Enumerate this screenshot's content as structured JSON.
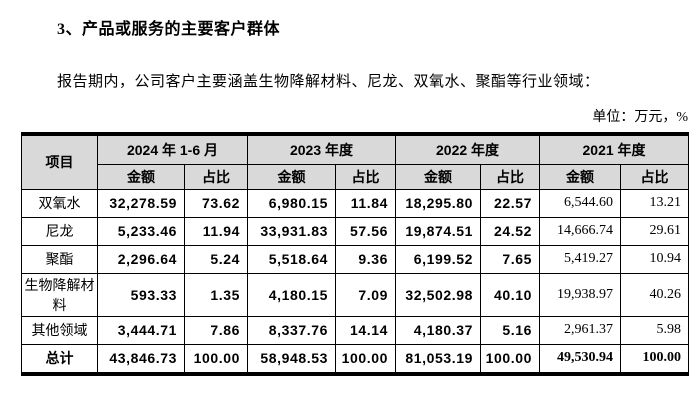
{
  "page": {
    "heading": "3、产品或服务的主要客户群体",
    "paragraph": "报告期内，公司客户主要涵盖生物降解材料、尼龙、双氧水、聚酯等行业领域：",
    "unit_note": "单位：万元，%"
  },
  "table": {
    "item_header": "项目",
    "period_headers": [
      "2024 年 1-6 月",
      "2023 年度",
      "2022 年度",
      "2021 年度"
    ],
    "sub_headers": [
      "金额",
      "占比"
    ],
    "rows": [
      {
        "label": "双氧水",
        "values": [
          "32,278.59",
          "73.62",
          "6,980.15",
          "11.84",
          "18,295.80",
          "22.57",
          "6,544.60",
          "13.21"
        ]
      },
      {
        "label": "尼龙",
        "values": [
          "5,233.46",
          "11.94",
          "33,931.83",
          "57.56",
          "19,874.51",
          "24.52",
          "14,666.74",
          "29.61"
        ]
      },
      {
        "label": "聚酯",
        "values": [
          "2,296.64",
          "5.24",
          "5,518.64",
          "9.36",
          "6,199.52",
          "7.65",
          "5,419.27",
          "10.94"
        ]
      },
      {
        "label": "生物降解材料",
        "values": [
          "593.33",
          "1.35",
          "4,180.15",
          "7.09",
          "32,502.98",
          "40.10",
          "19,938.97",
          "40.26"
        ]
      },
      {
        "label": "其他领域",
        "values": [
          "3,444.71",
          "7.86",
          "8,337.76",
          "14.14",
          "4,180.37",
          "5.16",
          "2,961.37",
          "5.98"
        ]
      },
      {
        "label": "总计",
        "values": [
          "43,846.73",
          "100.00",
          "58,948.53",
          "100.00",
          "81,053.19",
          "100.00",
          "49,530.94",
          "100.00"
        ],
        "is_total": true
      }
    ]
  }
}
